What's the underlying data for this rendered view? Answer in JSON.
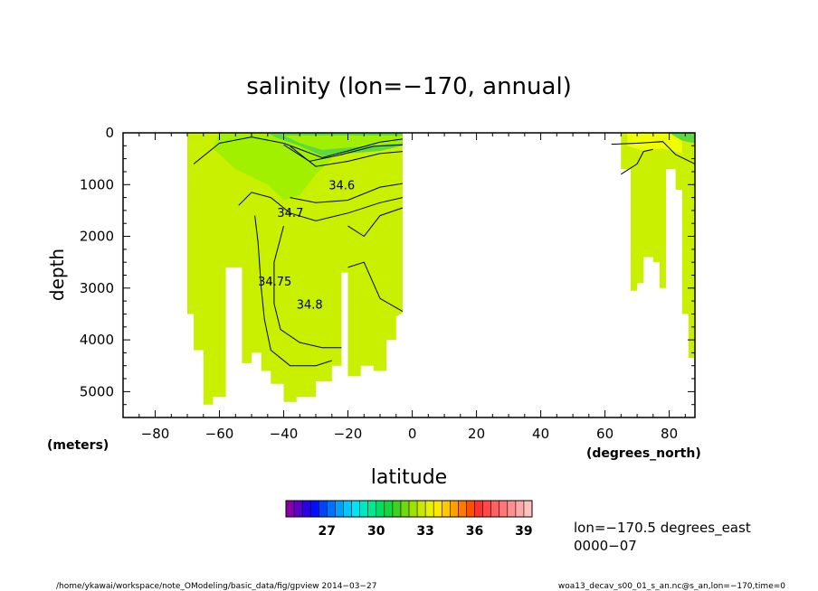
{
  "chart_data": {
    "type": "heatmap",
    "title": "salinity (lon=−170, annual)",
    "xlabel": "latitude",
    "ylabel": "depth",
    "x_units": "(degrees_north)",
    "y_units": "(meters)",
    "xlim": [
      -90,
      88
    ],
    "ylim": [
      5500,
      0
    ],
    "y_inverted": true,
    "x_ticks": [
      -80,
      -60,
      -40,
      -20,
      0,
      20,
      40,
      60,
      80
    ],
    "y_ticks": [
      0,
      1000,
      2000,
      3000,
      4000,
      5000
    ],
    "contours": [
      {
        "label": "34.6",
        "points": [
          [
            -38,
            1250
          ],
          [
            -30,
            1350
          ],
          [
            -20,
            1300
          ],
          [
            -10,
            1050
          ],
          [
            -3,
            980
          ]
        ],
        "label_at": [
          -26,
          1090
        ]
      },
      {
        "label": "34.7",
        "points": [
          [
            -54,
            1400
          ],
          [
            -50,
            1150
          ],
          [
            -44,
            1250
          ],
          [
            -38,
            1550
          ],
          [
            -30,
            1700
          ],
          [
            -20,
            1550
          ],
          [
            -10,
            1350
          ],
          [
            -3,
            1250
          ]
        ],
        "label_at": [
          -42,
          1620
        ]
      },
      {
        "label": "34.75",
        "points": [
          [
            -49,
            1600
          ],
          [
            -48,
            2100
          ],
          [
            -47,
            3000
          ],
          [
            -46,
            3600
          ],
          [
            -44,
            4200
          ],
          [
            -38,
            4500
          ],
          [
            -30,
            4500
          ],
          [
            -25,
            4400
          ]
        ],
        "label_at": [
          -48,
          2950
        ]
      },
      {
        "label": "34.8",
        "points": [
          [
            -40,
            1800
          ],
          [
            -43,
            2500
          ],
          [
            -43,
            3300
          ],
          [
            -41,
            3800
          ],
          [
            -35,
            4050
          ],
          [
            -28,
            4150
          ],
          [
            -22,
            4150
          ]
        ],
        "label_at": [
          -36,
          3400
        ]
      },
      {
        "label": "",
        "points": [
          [
            -20,
            1800
          ],
          [
            -15,
            2000
          ],
          [
            -10,
            1600
          ],
          [
            -3,
            1450
          ]
        ],
        "label_at": null
      },
      {
        "label": "",
        "points": [
          [
            -20,
            2600
          ],
          [
            -15,
            2500
          ],
          [
            -10,
            3200
          ],
          [
            -3,
            3450
          ]
        ],
        "label_at": null
      },
      {
        "label": "",
        "points": [
          [
            -68,
            600
          ],
          [
            -60,
            200
          ],
          [
            -50,
            80
          ],
          [
            -40,
            200
          ],
          [
            -28,
            480
          ],
          [
            -20,
            350
          ],
          [
            -10,
            180
          ],
          [
            -3,
            120
          ]
        ],
        "label_at": null
      },
      {
        "label": "",
        "points": [
          [
            -40,
            230
          ],
          [
            -32,
            550
          ],
          [
            -22,
            420
          ],
          [
            -12,
            260
          ],
          [
            -3,
            230
          ]
        ],
        "label_at": null
      },
      {
        "label": "",
        "points": [
          [
            -38,
            260
          ],
          [
            -30,
            650
          ],
          [
            -20,
            550
          ],
          [
            -10,
            400
          ],
          [
            -3,
            360
          ]
        ],
        "label_at": null
      },
      {
        "label": "",
        "points": [
          [
            62,
            220
          ],
          [
            70,
            200
          ],
          [
            78,
            170
          ],
          [
            82,
            420
          ],
          [
            88,
            600
          ]
        ],
        "label_at": null
      },
      {
        "label": "",
        "points": [
          [
            65,
            800
          ],
          [
            70,
            600
          ],
          [
            72,
            360
          ],
          [
            75,
            320
          ]
        ],
        "label_at": null
      }
    ],
    "colorbar": {
      "ticks": [
        27,
        30,
        33,
        36,
        39
      ],
      "min": 24.5,
      "max": 39.5,
      "step": 0.5,
      "colors": [
        "#8800aa",
        "#5a00c8",
        "#2a00e6",
        "#0010ff",
        "#0040ff",
        "#0070ff",
        "#00a0ff",
        "#00c8ff",
        "#00e6f0",
        "#00e8c0",
        "#00e890",
        "#00e060",
        "#10d840",
        "#40d020",
        "#70d810",
        "#a0e000",
        "#c8e800",
        "#e8f000",
        "#ffe800",
        "#ffc800",
        "#ffa000",
        "#ff7800",
        "#ff5000",
        "#ff3030",
        "#ff4848",
        "#ff6060",
        "#ff7878",
        "#ff9090",
        "#ffa8a8",
        "#ffc0c0"
      ]
    },
    "colors": {
      "yellow_green": "#c8f000",
      "green": "#a0f000",
      "dark_green": "#5cd840",
      "light_yellow": "#f0ff00"
    }
  },
  "annotations": {
    "lon": "lon=−170.5 degrees_east",
    "time": "0000−07",
    "footer_left": "/home/ykawai/workspace/note_OModeling/basic_data/fig/gpview   2014−03−27",
    "footer_right": "woa13_decav_s00_01_s_an.nc@s_an,lon=−170,time=0"
  }
}
